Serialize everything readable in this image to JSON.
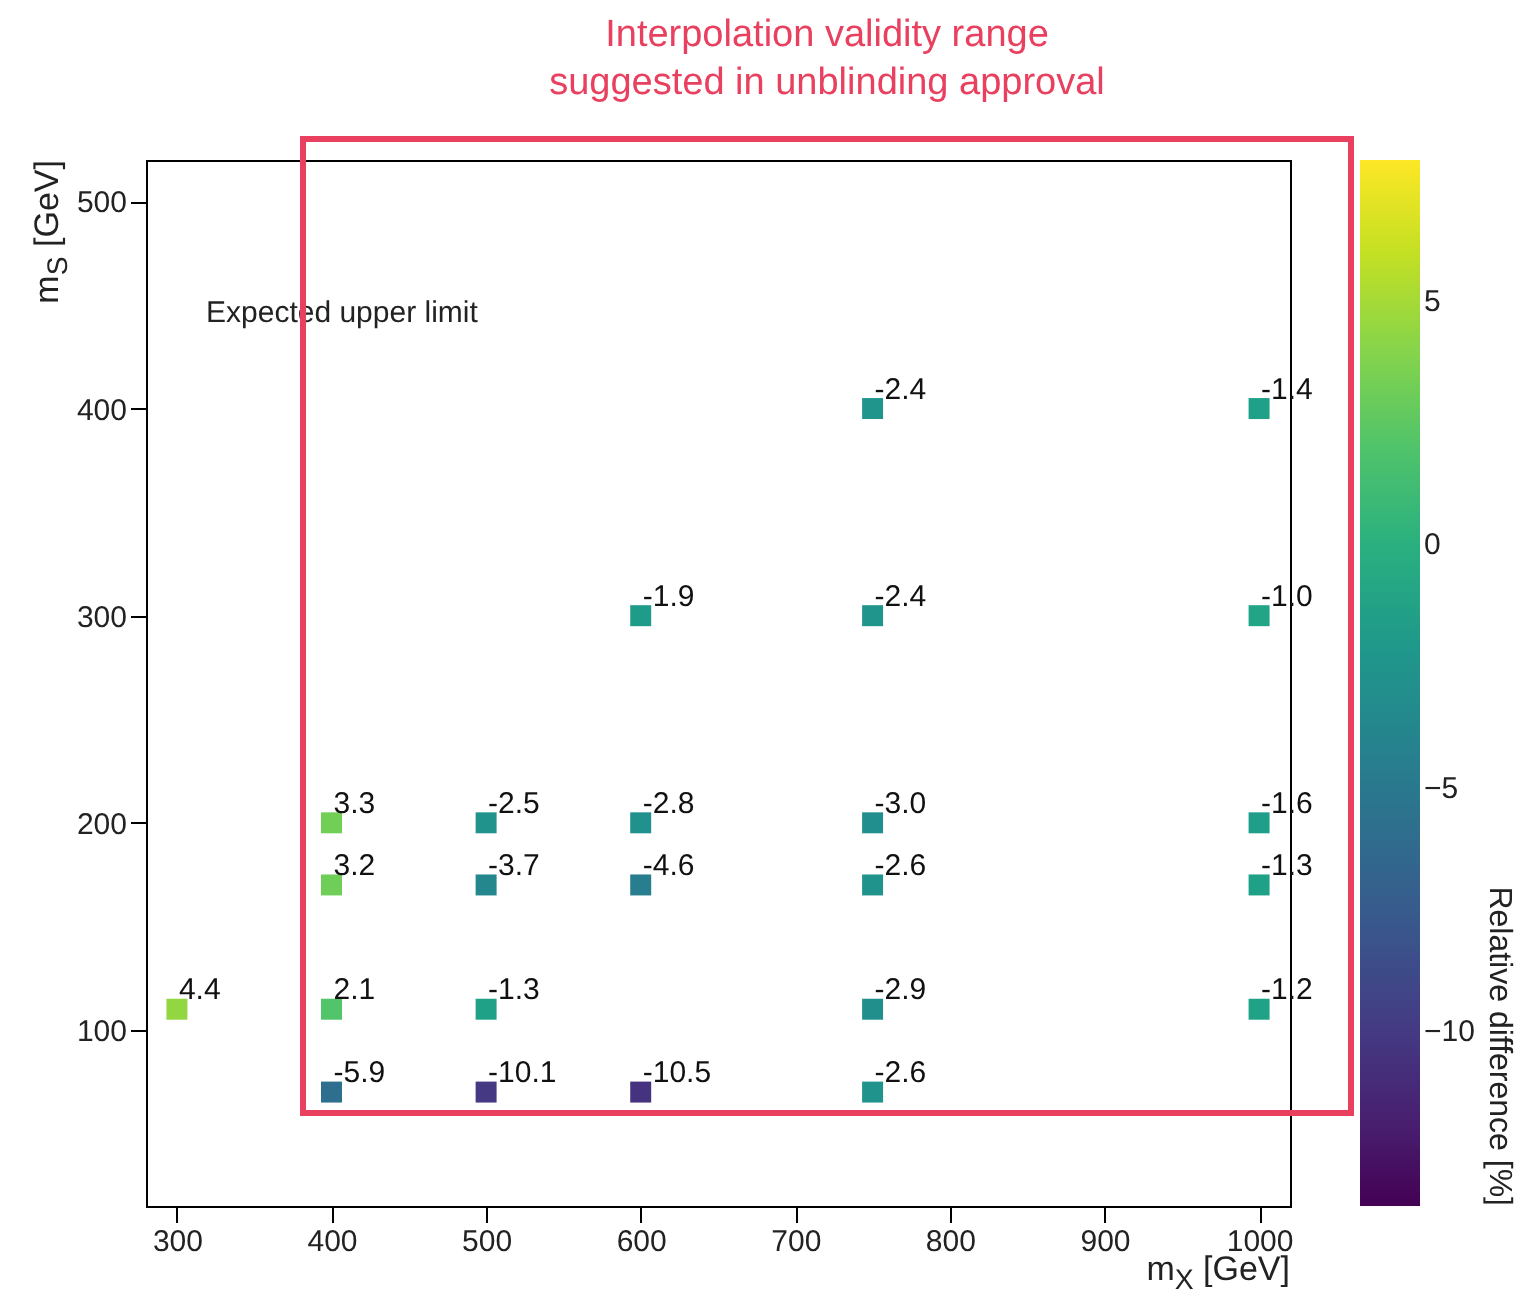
{
  "chart_data": {
    "type": "scatter",
    "xlabel": "m$_{X}$ [GeV]",
    "ylabel": "m$_{S}$ [GeV]",
    "clabel": "Relative difference [%]",
    "x": [
      300,
      400,
      400,
      400,
      400,
      500,
      500,
      500,
      500,
      600,
      600,
      600,
      600,
      750,
      750,
      750,
      750,
      750,
      750,
      1000,
      1000,
      1000,
      1000,
      1000
    ],
    "values": [
      110,
      200,
      170,
      110,
      70,
      200,
      170,
      110,
      70,
      300,
      200,
      170,
      70,
      400,
      300,
      200,
      170,
      110,
      70,
      400,
      300,
      200,
      170,
      110
    ],
    "cvalues": [
      4.4,
      3.3,
      3.2,
      2.1,
      -5.9,
      -2.5,
      -3.7,
      -1.3,
      -10.1,
      -1.9,
      -2.8,
      -4.6,
      -10.5,
      -2.4,
      -2.4,
      -3.0,
      -2.6,
      -2.9,
      -2.6,
      -1.4,
      -1.0,
      -1.6,
      -1.3,
      -1.2
    ],
    "xlim": [
      280,
      1020
    ],
    "xticks": [
      300,
      400,
      500,
      600,
      700,
      800,
      900,
      1000
    ],
    "ylim": [
      15,
      520
    ],
    "yticks": [
      100,
      200,
      300,
      400,
      500
    ],
    "clim": [
      -13.6,
      7.9
    ],
    "cticks": [
      -10,
      -5,
      0,
      5
    ],
    "marker": "square",
    "annotations": [
      "Expected upper limit",
      "Interpolation validity range\nsuggested in unblinding approval",
      {
        "text": "4.4",
        "x": 300,
        "y": 110
      },
      {
        "text": "3.3",
        "x": 400,
        "y": 200
      },
      {
        "text": "3.2",
        "x": 400,
        "y": 170
      },
      {
        "text": "2.1",
        "x": 400,
        "y": 110
      },
      {
        "text": "-5.9",
        "x": 400,
        "y": 70
      },
      {
        "text": "-2.5",
        "x": 500,
        "y": 200
      },
      {
        "text": "-3.7",
        "x": 500,
        "y": 170
      },
      {
        "text": "-1.3",
        "x": 500,
        "y": 110
      },
      {
        "text": "-10.1",
        "x": 500,
        "y": 70
      },
      {
        "text": "-1.9",
        "x": 600,
        "y": 300
      },
      {
        "text": "-2.8",
        "x": 600,
        "y": 200
      },
      {
        "text": "-4.6",
        "x": 600,
        "y": 170
      },
      {
        "text": "-10.5",
        "x": 600,
        "y": 70
      },
      {
        "text": "-2.4",
        "x": 750,
        "y": 400
      },
      {
        "text": "-2.4",
        "x": 750,
        "y": 300
      },
      {
        "text": "-3.0",
        "x": 750,
        "y": 200
      },
      {
        "text": "-2.6",
        "x": 750,
        "y": 170
      },
      {
        "text": "-2.9",
        "x": 750,
        "y": 110
      },
      {
        "text": "-2.6",
        "x": 750,
        "y": 70
      },
      {
        "text": "-1.4",
        "x": 1000,
        "y": 400
      },
      {
        "text": "-1.0",
        "x": 1000,
        "y": 300
      },
      {
        "text": "-1.6",
        "x": 1000,
        "y": 200
      },
      {
        "text": "-1.3",
        "x": 1000,
        "y": 170
      },
      {
        "text": "-1.2",
        "x": 1000,
        "y": 110
      }
    ]
  }
}
